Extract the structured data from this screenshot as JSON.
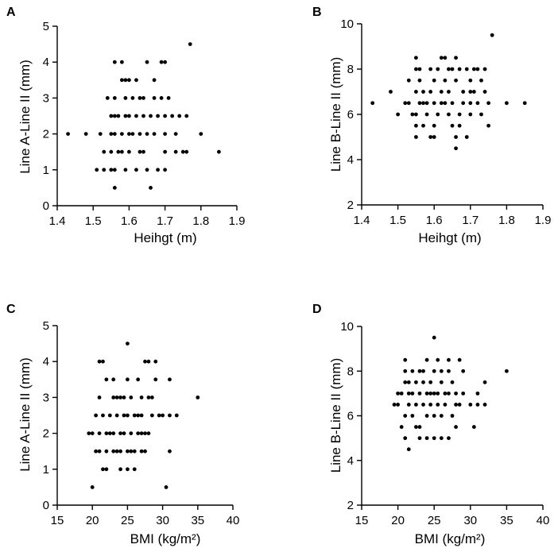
{
  "chart_data": [
    {
      "panel": "A",
      "type": "scatter",
      "xlabel": "Heihgt (m)",
      "ylabel": "Line A-Line II (mm)",
      "xlim": [
        1.4,
        1.9
      ],
      "ylim": [
        0,
        5
      ],
      "xticks": [
        "1.4",
        "1.5",
        "1.6",
        "1.7",
        "1.8",
        "1.9"
      ],
      "yticks": [
        "0",
        "1",
        "2",
        "3",
        "4",
        "5"
      ],
      "points": [
        [
          1.43,
          2
        ],
        [
          1.48,
          2
        ],
        [
          1.51,
          1
        ],
        [
          1.52,
          2
        ],
        [
          1.53,
          1
        ],
        [
          1.53,
          1.5
        ],
        [
          1.54,
          3
        ],
        [
          1.55,
          1
        ],
        [
          1.55,
          2.5
        ],
        [
          1.55,
          1.5
        ],
        [
          1.56,
          4
        ],
        [
          1.56,
          3
        ],
        [
          1.56,
          2.5
        ],
        [
          1.56,
          2
        ],
        [
          1.56,
          1
        ],
        [
          1.56,
          0.5
        ],
        [
          1.57,
          2.5
        ],
        [
          1.57,
          1.5
        ],
        [
          1.58,
          4
        ],
        [
          1.58,
          3.5
        ],
        [
          1.58,
          2
        ],
        [
          1.59,
          2.5
        ],
        [
          1.59,
          3.5
        ],
        [
          1.59,
          3
        ],
        [
          1.59,
          1
        ],
        [
          1.6,
          3.5
        ],
        [
          1.6,
          2.5
        ],
        [
          1.6,
          2
        ],
        [
          1.6,
          1.5
        ],
        [
          1.61,
          3
        ],
        [
          1.61,
          2
        ],
        [
          1.62,
          2.5
        ],
        [
          1.62,
          3.5
        ],
        [
          1.62,
          1
        ],
        [
          1.63,
          2
        ],
        [
          1.63,
          1.5
        ],
        [
          1.64,
          3
        ],
        [
          1.64,
          2.5
        ],
        [
          1.64,
          1.5
        ],
        [
          1.65,
          4
        ],
        [
          1.65,
          2
        ],
        [
          1.65,
          1
        ],
        [
          1.66,
          2.5
        ],
        [
          1.66,
          0.5
        ],
        [
          1.67,
          3.5
        ],
        [
          1.67,
          2
        ],
        [
          1.67,
          3
        ],
        [
          1.68,
          2.5
        ],
        [
          1.68,
          1
        ],
        [
          1.69,
          4
        ],
        [
          1.69,
          3
        ],
        [
          1.7,
          4
        ],
        [
          1.7,
          2.5
        ],
        [
          1.7,
          2
        ],
        [
          1.7,
          1.5
        ],
        [
          1.7,
          1
        ],
        [
          1.71,
          3
        ],
        [
          1.72,
          2.5
        ],
        [
          1.73,
          2
        ],
        [
          1.74,
          2.5
        ],
        [
          1.75,
          1.5
        ],
        [
          1.76,
          1.5
        ],
        [
          1.76,
          2.5
        ],
        [
          1.77,
          4.5
        ],
        [
          1.8,
          2
        ],
        [
          1.85,
          1.5
        ],
        [
          1.73,
          1.5
        ],
        [
          1.63,
          3
        ],
        [
          1.58,
          1.5
        ],
        [
          1.55,
          2
        ]
      ]
    },
    {
      "panel": "B",
      "type": "scatter",
      "xlabel": "Heihgt (m)",
      "ylabel": "Line B-Line II (mm)",
      "xlim": [
        1.4,
        1.9
      ],
      "ylim": [
        2,
        10
      ],
      "xticks": [
        "1.4",
        "1.5",
        "1.6",
        "1.7",
        "1.8",
        "1.9"
      ],
      "yticks": [
        "2",
        "4",
        "6",
        "8",
        "10"
      ],
      "points": [
        [
          1.43,
          6.5
        ],
        [
          1.48,
          7
        ],
        [
          1.5,
          6
        ],
        [
          1.52,
          6.5
        ],
        [
          1.53,
          7.5
        ],
        [
          1.53,
          6.5
        ],
        [
          1.54,
          6
        ],
        [
          1.55,
          8.5
        ],
        [
          1.55,
          8
        ],
        [
          1.55,
          7
        ],
        [
          1.55,
          6
        ],
        [
          1.55,
          5.5
        ],
        [
          1.55,
          5
        ],
        [
          1.56,
          8
        ],
        [
          1.56,
          7.5
        ],
        [
          1.56,
          6.5
        ],
        [
          1.57,
          5.5
        ],
        [
          1.57,
          7
        ],
        [
          1.58,
          6.5
        ],
        [
          1.58,
          6
        ],
        [
          1.59,
          8
        ],
        [
          1.59,
          7
        ],
        [
          1.59,
          5
        ],
        [
          1.6,
          7.5
        ],
        [
          1.6,
          6.5
        ],
        [
          1.6,
          5.5
        ],
        [
          1.6,
          5
        ],
        [
          1.61,
          8
        ],
        [
          1.61,
          6
        ],
        [
          1.62,
          8.5
        ],
        [
          1.62,
          7
        ],
        [
          1.63,
          8.5
        ],
        [
          1.63,
          7.5
        ],
        [
          1.63,
          6.5
        ],
        [
          1.64,
          8
        ],
        [
          1.64,
          6
        ],
        [
          1.64,
          7
        ],
        [
          1.65,
          5.5
        ],
        [
          1.65,
          6.5
        ],
        [
          1.66,
          8.5
        ],
        [
          1.66,
          5
        ],
        [
          1.66,
          4.5
        ],
        [
          1.66,
          7.5
        ],
        [
          1.67,
          8
        ],
        [
          1.67,
          6
        ],
        [
          1.67,
          5.5
        ],
        [
          1.68,
          7
        ],
        [
          1.68,
          6.5
        ],
        [
          1.69,
          8
        ],
        [
          1.69,
          5
        ],
        [
          1.7,
          7.5
        ],
        [
          1.7,
          7
        ],
        [
          1.7,
          6.5
        ],
        [
          1.7,
          6
        ],
        [
          1.71,
          8
        ],
        [
          1.71,
          7
        ],
        [
          1.72,
          6.5
        ],
        [
          1.73,
          7.5
        ],
        [
          1.73,
          6
        ],
        [
          1.74,
          8
        ],
        [
          1.74,
          7
        ],
        [
          1.75,
          6.5
        ],
        [
          1.75,
          5.5
        ],
        [
          1.76,
          9.5
        ],
        [
          1.8,
          6.5
        ],
        [
          1.85,
          6.5
        ],
        [
          1.72,
          8
        ],
        [
          1.62,
          6.5
        ],
        [
          1.57,
          6.5
        ],
        [
          1.65,
          8
        ]
      ]
    },
    {
      "panel": "C",
      "type": "scatter",
      "xlabel": "BMI (kg/m²)",
      "ylabel": "Line A-Line II (mm)",
      "xlim": [
        15,
        40
      ],
      "ylim": [
        0,
        5
      ],
      "xticks": [
        "15",
        "20",
        "25",
        "30",
        "35",
        "40"
      ],
      "yticks": [
        "0",
        "1",
        "2",
        "3",
        "4",
        "5"
      ],
      "points": [
        [
          19.5,
          2
        ],
        [
          20,
          2
        ],
        [
          20,
          0.5
        ],
        [
          20.5,
          2.5
        ],
        [
          21,
          4
        ],
        [
          21,
          3
        ],
        [
          21,
          2
        ],
        [
          21,
          1.5
        ],
        [
          21.5,
          2.5
        ],
        [
          21.5,
          1
        ],
        [
          21.5,
          4
        ],
        [
          22,
          3.5
        ],
        [
          22,
          2
        ],
        [
          22,
          1.5
        ],
        [
          22,
          1
        ],
        [
          22.5,
          2.5
        ],
        [
          23,
          3
        ],
        [
          23,
          2
        ],
        [
          23,
          1.5
        ],
        [
          23,
          3.5
        ],
        [
          23.5,
          2.5
        ],
        [
          23.5,
          1.5
        ],
        [
          24,
          3
        ],
        [
          24,
          2
        ],
        [
          24,
          1.5
        ],
        [
          24,
          1
        ],
        [
          24.5,
          3
        ],
        [
          24.5,
          2
        ],
        [
          25,
          3.5
        ],
        [
          25,
          2.5
        ],
        [
          25,
          1.5
        ],
        [
          25,
          4.5
        ],
        [
          25,
          1
        ],
        [
          25.5,
          3
        ],
        [
          25.5,
          2
        ],
        [
          26,
          2.5
        ],
        [
          26,
          1.5
        ],
        [
          26,
          1
        ],
        [
          26.5,
          3.5
        ],
        [
          26.5,
          2
        ],
        [
          27,
          3
        ],
        [
          27,
          2.5
        ],
        [
          27,
          2
        ],
        [
          27,
          1.5
        ],
        [
          27.5,
          2
        ],
        [
          27.5,
          4
        ],
        [
          28,
          4
        ],
        [
          28,
          3
        ],
        [
          28,
          2
        ],
        [
          28.5,
          2.5
        ],
        [
          29,
          3.5
        ],
        [
          29,
          4
        ],
        [
          29.5,
          2.5
        ],
        [
          30,
          2.5
        ],
        [
          30.5,
          0.5
        ],
        [
          31,
          3.5
        ],
        [
          31,
          1.5
        ],
        [
          31,
          2.5
        ],
        [
          32,
          2.5
        ],
        [
          35,
          3
        ],
        [
          20.5,
          1.5
        ],
        [
          22.5,
          2
        ],
        [
          24.5,
          2.5
        ],
        [
          26.5,
          2.5
        ],
        [
          27.5,
          1.5
        ],
        [
          23.5,
          3
        ],
        [
          25.5,
          1.5
        ],
        [
          28.5,
          3
        ]
      ]
    },
    {
      "panel": "D",
      "type": "scatter",
      "xlabel": "BMI (kg/m²)",
      "ylabel": "Line B-Line II (mm)",
      "xlim": [
        15,
        40
      ],
      "ylim": [
        2,
        10
      ],
      "xticks": [
        "15",
        "20",
        "25",
        "30",
        "35",
        "40"
      ],
      "yticks": [
        "2",
        "4",
        "6",
        "8",
        "10"
      ],
      "points": [
        [
          19.5,
          6.5
        ],
        [
          20,
          7
        ],
        [
          20,
          6.5
        ],
        [
          20.5,
          7
        ],
        [
          20.5,
          5.5
        ],
        [
          21,
          8.5
        ],
        [
          21,
          8
        ],
        [
          21,
          7.5
        ],
        [
          21,
          6
        ],
        [
          21,
          5
        ],
        [
          21.5,
          7
        ],
        [
          21.5,
          4.5
        ],
        [
          21.5,
          6.5
        ],
        [
          22,
          8
        ],
        [
          22,
          7
        ],
        [
          22,
          6
        ],
        [
          22.5,
          7.5
        ],
        [
          22.5,
          6.5
        ],
        [
          23,
          8
        ],
        [
          23,
          7
        ],
        [
          23,
          5.5
        ],
        [
          23,
          5
        ],
        [
          23.5,
          8
        ],
        [
          23.5,
          6.5
        ],
        [
          24,
          8.5
        ],
        [
          24,
          7
        ],
        [
          24,
          6
        ],
        [
          24,
          5
        ],
        [
          24.5,
          7.5
        ],
        [
          24.5,
          6.5
        ],
        [
          25,
          9.5
        ],
        [
          25,
          8
        ],
        [
          25,
          7
        ],
        [
          25,
          6
        ],
        [
          25,
          5
        ],
        [
          25.5,
          8.5
        ],
        [
          25.5,
          7
        ],
        [
          25.5,
          6.5
        ],
        [
          26,
          8
        ],
        [
          26,
          7.5
        ],
        [
          26,
          6
        ],
        [
          26.5,
          7
        ],
        [
          26.5,
          6.5
        ],
        [
          27,
          8.5
        ],
        [
          27,
          8
        ],
        [
          27,
          7
        ],
        [
          27,
          5
        ],
        [
          27.5,
          7.5
        ],
        [
          27.5,
          6
        ],
        [
          28,
          7
        ],
        [
          28,
          5.5
        ],
        [
          28.5,
          8.5
        ],
        [
          28.5,
          6.5
        ],
        [
          29,
          7
        ],
        [
          29,
          8
        ],
        [
          30,
          6.5
        ],
        [
          30.5,
          5.5
        ],
        [
          31,
          7
        ],
        [
          31,
          6.5
        ],
        [
          32,
          7.5
        ],
        [
          32,
          6.5
        ],
        [
          35,
          8
        ],
        [
          22.5,
          5.5
        ],
        [
          24.5,
          7
        ],
        [
          26,
          5
        ],
        [
          23.5,
          7.5
        ],
        [
          28,
          6.5
        ],
        [
          21.5,
          7.5
        ]
      ]
    }
  ]
}
